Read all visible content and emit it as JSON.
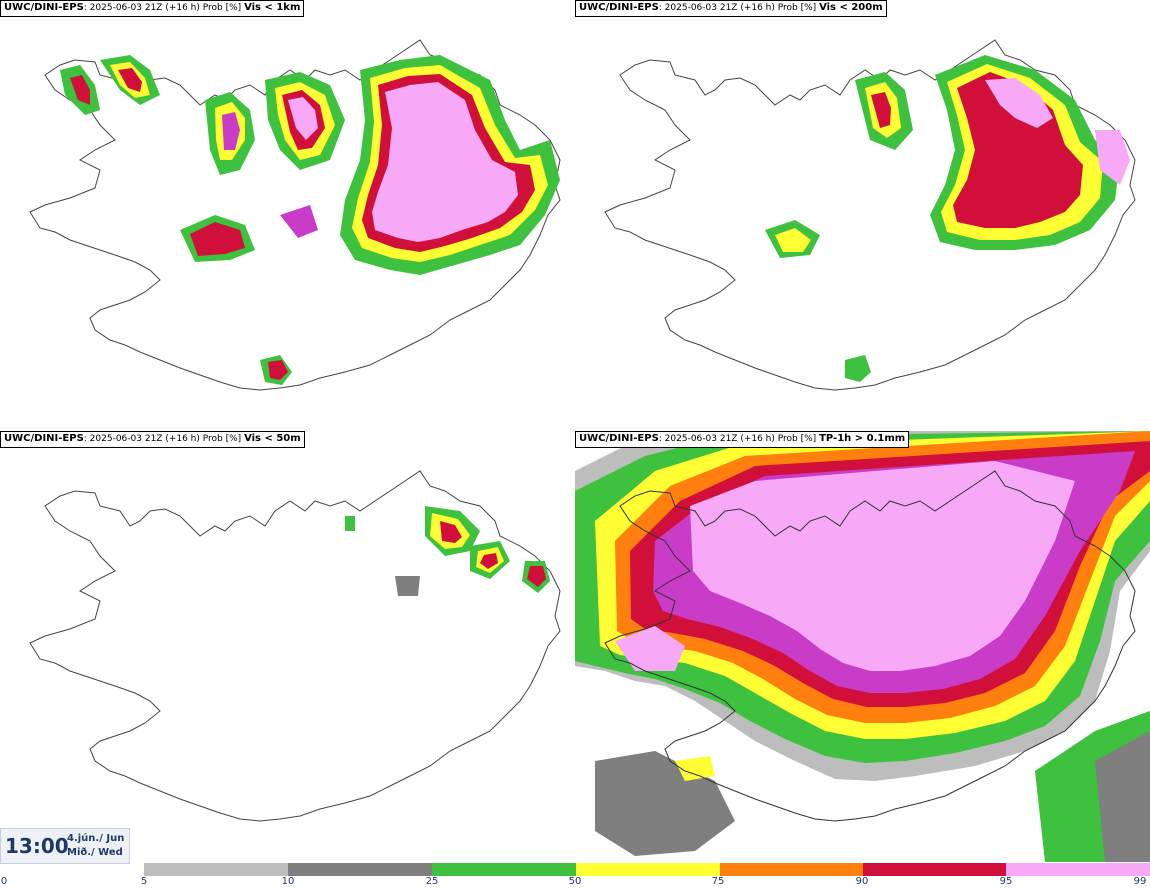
{
  "panels": [
    {
      "model": "UWC/DINI-EPS",
      "run": "2025-06-03 21Z (+16 h) Prob [%]",
      "variable": "Vis < 1km"
    },
    {
      "model": "UWC/DINI-EPS",
      "run": "2025-06-03 21Z (+16 h) Prob [%]",
      "variable": "Vis < 200m"
    },
    {
      "model": "UWC/DINI-EPS",
      "run": "2025-06-03 21Z (+16 h) Prob [%]",
      "variable": "Vis < 50m"
    },
    {
      "model": "UWC/DINI-EPS",
      "run": "2025-06-03 21Z (+16 h) Prob [%]",
      "variable": "TP-1h > 0.1mm"
    }
  ],
  "timestamp": {
    "time": "13:00",
    "date_line1": "4.jún./ Jun",
    "date_line2": "Mið./ Wed"
  },
  "colorbar": {
    "ticks": [
      "0",
      "5",
      "10",
      "25",
      "50",
      "75",
      "90",
      "95",
      "99"
    ],
    "colors": [
      "#bdbdbd",
      "#7f7f7f",
      "#3ec13e",
      "#ffff33",
      "#ff7f0f",
      "#d0103a",
      "#c83cc8",
      "#f7a8f7"
    ]
  }
}
